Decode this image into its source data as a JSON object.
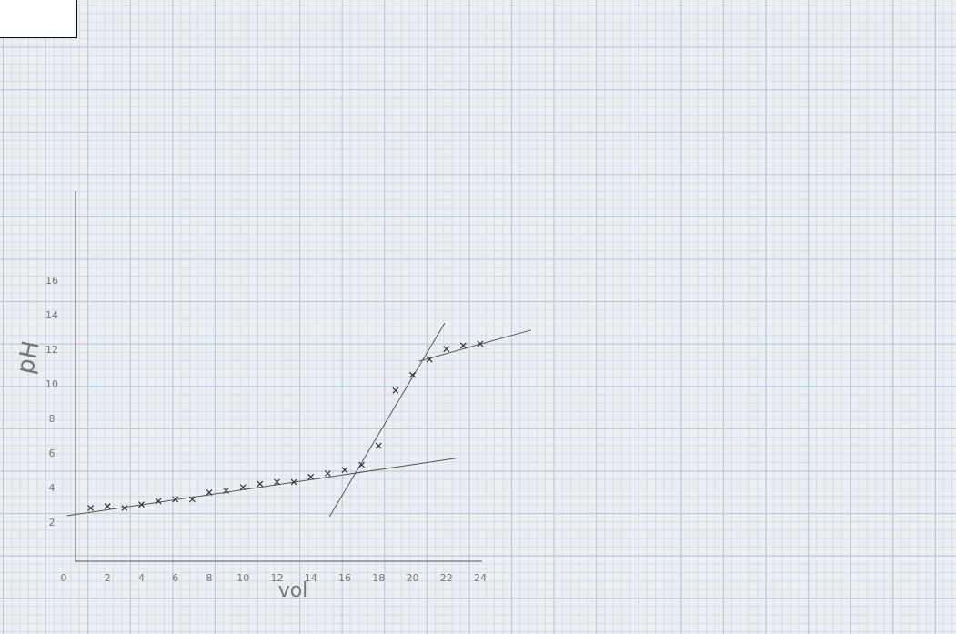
{
  "chart_data": {
    "type": "scatter",
    "x_label": "vol",
    "y_label": "pH",
    "x": [
      1,
      2,
      3,
      4,
      5,
      6,
      7,
      8,
      9,
      10,
      11,
      12,
      13,
      14,
      15,
      16,
      17,
      18,
      19,
      20,
      21,
      22,
      23,
      24
    ],
    "values": [
      3.5,
      3.6,
      3.5,
      3.7,
      3.9,
      4.0,
      4.0,
      4.4,
      4.5,
      4.7,
      4.9,
      5.0,
      5.0,
      5.3,
      5.5,
      5.7,
      6.0,
      7.1,
      10.3,
      11.2,
      12.1,
      12.7,
      12.9,
      13.0
    ],
    "color": "#333333",
    "fit_lines": [
      {
        "x": [
          -0.4,
          22.7
        ],
        "y": [
          3.05,
          6.4
        ]
      },
      {
        "x": [
          15.1,
          21.9
        ],
        "y": [
          3.0,
          14.2
        ]
      },
      {
        "x": [
          20.4,
          27.0
        ],
        "y": [
          12.0,
          13.8
        ]
      }
    ],
    "xlim": [
      0,
      24
    ],
    "ylim": [
      0,
      16
    ],
    "xticks": [
      0,
      2,
      4,
      6,
      8,
      10,
      12,
      14,
      16,
      18,
      20,
      22,
      24
    ],
    "yticks": [
      2,
      4,
      6,
      8,
      10,
      12,
      14,
      16
    ],
    "grid": true
  }
}
